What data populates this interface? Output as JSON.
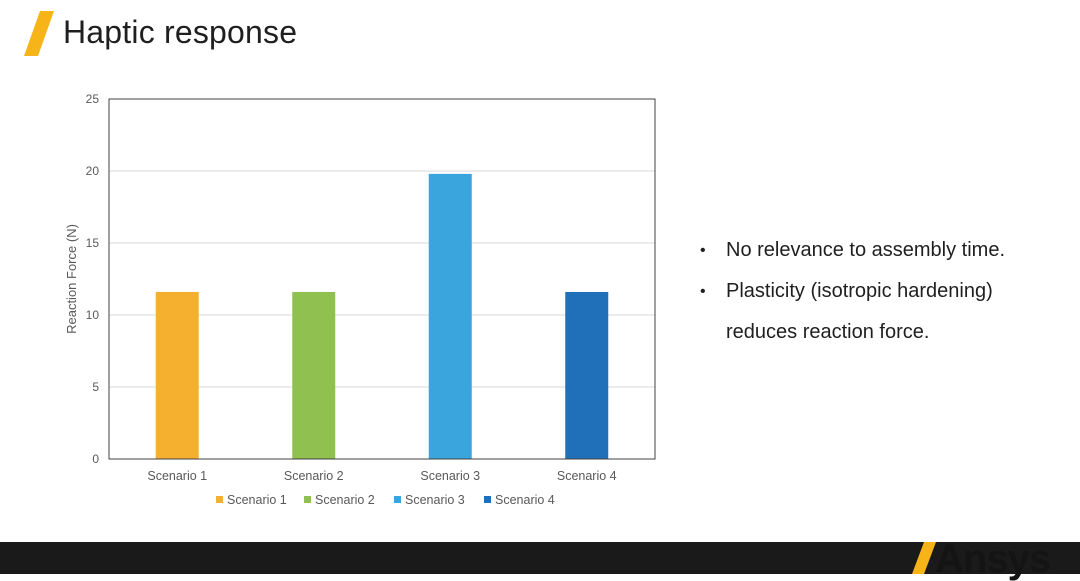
{
  "slide": {
    "title": "Haptic response",
    "accent_color": "#f6b418"
  },
  "bullets": [
    "No relevance to assembly time.",
    "Plasticity (isotropic hardening) reduces reaction force."
  ],
  "brand": {
    "name": "Ansys"
  },
  "chart_data": {
    "type": "bar",
    "title": "",
    "xlabel": "",
    "ylabel": "Reaction Force (N)",
    "ylim": [
      0,
      25
    ],
    "yticks": [
      0,
      5,
      10,
      15,
      20,
      25
    ],
    "grid": true,
    "legend_position": "bottom",
    "categories": [
      "Scenario 1",
      "Scenario 2",
      "Scenario 3",
      "Scenario 4"
    ],
    "series": [
      {
        "name": "Scenario 1",
        "category": "Scenario 1",
        "value": 11.6,
        "color": "#f6b030"
      },
      {
        "name": "Scenario 2",
        "category": "Scenario 2",
        "value": 11.6,
        "color": "#90c150"
      },
      {
        "name": "Scenario 3",
        "category": "Scenario 3",
        "value": 19.8,
        "color": "#3aa5dc"
      },
      {
        "name": "Scenario 4",
        "category": "Scenario 4",
        "value": 11.6,
        "color": "#1f70b8"
      }
    ]
  }
}
